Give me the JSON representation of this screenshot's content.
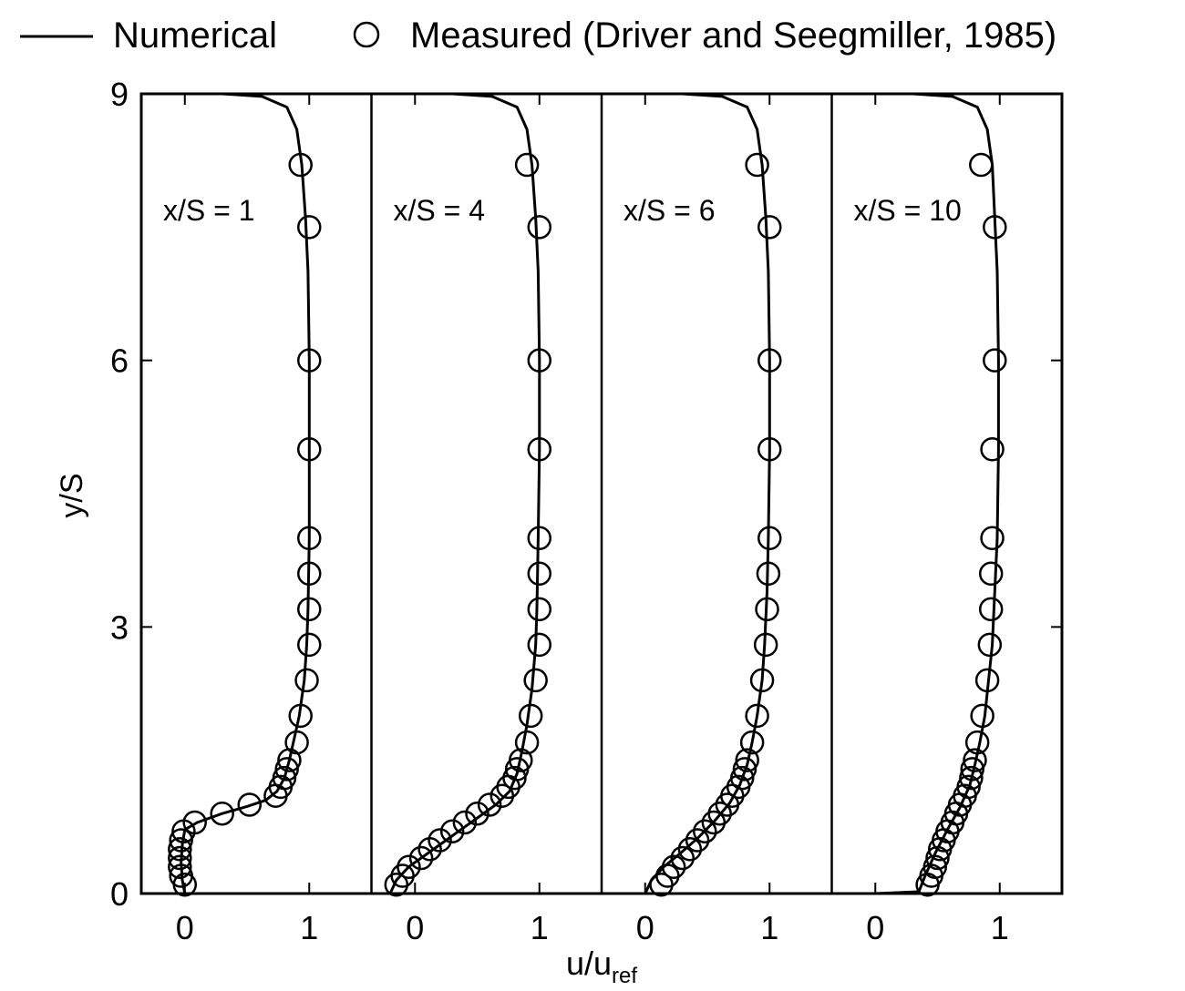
{
  "chart_data": {
    "type": "line",
    "legend": {
      "placement": "top",
      "entries": [
        {
          "label": "Numerical",
          "marker": "line"
        },
        {
          "label": "Measured (Driver and Seegmiller, 1985)",
          "marker": "open-circle"
        }
      ]
    },
    "ylabel": "y/S",
    "xlabel_main": "u/u",
    "xlabel_sub": "ref",
    "ylim": [
      0,
      9
    ],
    "yticks": [
      0,
      3,
      6,
      9
    ],
    "xlim": [
      -0.35,
      1.5
    ],
    "xticks": [
      0,
      1
    ],
    "grid": false,
    "panels": [
      {
        "label": "x/S = 1",
        "numerical": [
          [
            0.0,
            0.0
          ],
          [
            -0.02,
            0.15
          ],
          [
            -0.03,
            0.35
          ],
          [
            -0.02,
            0.55
          ],
          [
            0.0,
            0.72
          ],
          [
            0.1,
            0.8
          ],
          [
            0.3,
            0.9
          ],
          [
            0.5,
            0.98
          ],
          [
            0.65,
            1.05
          ],
          [
            0.74,
            1.15
          ],
          [
            0.8,
            1.3
          ],
          [
            0.84,
            1.5
          ],
          [
            0.88,
            1.75
          ],
          [
            0.92,
            2.0
          ],
          [
            0.96,
            2.4
          ],
          [
            0.98,
            2.8
          ],
          [
            0.99,
            3.2
          ],
          [
            1.0,
            4.0
          ],
          [
            1.0,
            5.0
          ],
          [
            1.0,
            6.0
          ],
          [
            0.99,
            7.0
          ],
          [
            0.97,
            7.6
          ],
          [
            0.94,
            8.2
          ],
          [
            0.9,
            8.6
          ],
          [
            0.82,
            8.85
          ],
          [
            0.62,
            8.97
          ],
          [
            0.3,
            9.0
          ],
          [
            -0.35,
            9.0
          ]
        ],
        "measured": [
          [
            0.0,
            0.1
          ],
          [
            -0.03,
            0.2
          ],
          [
            -0.04,
            0.3
          ],
          [
            -0.04,
            0.4
          ],
          [
            -0.04,
            0.5
          ],
          [
            -0.03,
            0.6
          ],
          [
            -0.01,
            0.7
          ],
          [
            0.08,
            0.8
          ],
          [
            0.3,
            0.9
          ],
          [
            0.52,
            1.0
          ],
          [
            0.73,
            1.1
          ],
          [
            0.77,
            1.2
          ],
          [
            0.8,
            1.3
          ],
          [
            0.82,
            1.4
          ],
          [
            0.84,
            1.5
          ],
          [
            0.9,
            1.7
          ],
          [
            0.93,
            2.0
          ],
          [
            0.98,
            2.4
          ],
          [
            1.0,
            2.8
          ],
          [
            1.0,
            3.2
          ],
          [
            1.0,
            3.6
          ],
          [
            1.0,
            4.0
          ],
          [
            1.0,
            5.0
          ],
          [
            1.0,
            6.0
          ],
          [
            1.0,
            7.5
          ],
          [
            0.93,
            8.2
          ]
        ]
      },
      {
        "label": "x/S = 4",
        "numerical": [
          [
            -0.2,
            0.0
          ],
          [
            -0.15,
            0.15
          ],
          [
            -0.05,
            0.3
          ],
          [
            0.1,
            0.45
          ],
          [
            0.3,
            0.65
          ],
          [
            0.5,
            0.85
          ],
          [
            0.65,
            1.0
          ],
          [
            0.76,
            1.15
          ],
          [
            0.82,
            1.35
          ],
          [
            0.86,
            1.6
          ],
          [
            0.9,
            1.9
          ],
          [
            0.94,
            2.3
          ],
          [
            0.97,
            2.8
          ],
          [
            0.98,
            3.2
          ],
          [
            0.99,
            4.0
          ],
          [
            1.0,
            5.0
          ],
          [
            1.0,
            6.0
          ],
          [
            0.99,
            7.0
          ],
          [
            0.97,
            7.6
          ],
          [
            0.94,
            8.2
          ],
          [
            0.9,
            8.6
          ],
          [
            0.82,
            8.85
          ],
          [
            0.62,
            8.97
          ],
          [
            0.3,
            9.0
          ],
          [
            -0.35,
            9.0
          ]
        ],
        "measured": [
          [
            -0.15,
            0.1
          ],
          [
            -0.1,
            0.2
          ],
          [
            -0.05,
            0.3
          ],
          [
            0.05,
            0.4
          ],
          [
            0.12,
            0.5
          ],
          [
            0.2,
            0.6
          ],
          [
            0.3,
            0.7
          ],
          [
            0.4,
            0.8
          ],
          [
            0.5,
            0.9
          ],
          [
            0.6,
            1.0
          ],
          [
            0.7,
            1.1
          ],
          [
            0.75,
            1.2
          ],
          [
            0.8,
            1.3
          ],
          [
            0.82,
            1.4
          ],
          [
            0.85,
            1.5
          ],
          [
            0.9,
            1.7
          ],
          [
            0.93,
            2.0
          ],
          [
            0.97,
            2.4
          ],
          [
            1.0,
            2.8
          ],
          [
            1.0,
            3.2
          ],
          [
            1.0,
            3.6
          ],
          [
            1.0,
            4.0
          ],
          [
            1.0,
            5.0
          ],
          [
            1.0,
            6.0
          ],
          [
            1.0,
            7.5
          ],
          [
            0.9,
            8.2
          ]
        ]
      },
      {
        "label": "x/S = 6",
        "numerical": [
          [
            0.0,
            0.0
          ],
          [
            0.05,
            0.15
          ],
          [
            0.15,
            0.3
          ],
          [
            0.28,
            0.45
          ],
          [
            0.42,
            0.62
          ],
          [
            0.56,
            0.82
          ],
          [
            0.68,
            1.02
          ],
          [
            0.76,
            1.22
          ],
          [
            0.82,
            1.45
          ],
          [
            0.86,
            1.7
          ],
          [
            0.9,
            2.0
          ],
          [
            0.94,
            2.4
          ],
          [
            0.96,
            2.8
          ],
          [
            0.98,
            3.4
          ],
          [
            0.99,
            4.0
          ],
          [
            1.0,
            5.0
          ],
          [
            1.0,
            6.0
          ],
          [
            0.99,
            7.0
          ],
          [
            0.97,
            7.6
          ],
          [
            0.94,
            8.2
          ],
          [
            0.9,
            8.6
          ],
          [
            0.82,
            8.85
          ],
          [
            0.62,
            8.97
          ],
          [
            0.3,
            9.0
          ],
          [
            -0.35,
            9.0
          ]
        ],
        "measured": [
          [
            0.13,
            0.1
          ],
          [
            0.18,
            0.2
          ],
          [
            0.23,
            0.3
          ],
          [
            0.3,
            0.4
          ],
          [
            0.36,
            0.5
          ],
          [
            0.42,
            0.6
          ],
          [
            0.48,
            0.7
          ],
          [
            0.55,
            0.8
          ],
          [
            0.6,
            0.9
          ],
          [
            0.66,
            1.0
          ],
          [
            0.7,
            1.1
          ],
          [
            0.75,
            1.2
          ],
          [
            0.78,
            1.3
          ],
          [
            0.8,
            1.4
          ],
          [
            0.82,
            1.5
          ],
          [
            0.86,
            1.7
          ],
          [
            0.9,
            2.0
          ],
          [
            0.94,
            2.4
          ],
          [
            0.97,
            2.8
          ],
          [
            0.98,
            3.2
          ],
          [
            0.99,
            3.6
          ],
          [
            1.0,
            4.0
          ],
          [
            1.0,
            5.0
          ],
          [
            1.0,
            6.0
          ],
          [
            1.0,
            7.5
          ],
          [
            0.9,
            8.2
          ]
        ]
      },
      {
        "label": "x/S = 10",
        "numerical": [
          [
            0.0,
            0.0
          ],
          [
            0.35,
            0.02
          ],
          [
            0.4,
            0.2
          ],
          [
            0.48,
            0.45
          ],
          [
            0.58,
            0.72
          ],
          [
            0.68,
            0.97
          ],
          [
            0.76,
            1.22
          ],
          [
            0.8,
            1.45
          ],
          [
            0.84,
            1.7
          ],
          [
            0.88,
            2.0
          ],
          [
            0.91,
            2.4
          ],
          [
            0.94,
            2.8
          ],
          [
            0.96,
            3.4
          ],
          [
            0.98,
            4.0
          ],
          [
            0.99,
            5.0
          ],
          [
            0.99,
            6.0
          ],
          [
            0.98,
            7.0
          ],
          [
            0.96,
            7.6
          ],
          [
            0.94,
            8.2
          ],
          [
            0.9,
            8.6
          ],
          [
            0.82,
            8.85
          ],
          [
            0.62,
            8.97
          ],
          [
            0.3,
            9.0
          ],
          [
            -0.35,
            9.0
          ]
        ],
        "measured": [
          [
            0.42,
            0.1
          ],
          [
            0.45,
            0.2
          ],
          [
            0.48,
            0.3
          ],
          [
            0.5,
            0.4
          ],
          [
            0.52,
            0.5
          ],
          [
            0.55,
            0.6
          ],
          [
            0.58,
            0.7
          ],
          [
            0.62,
            0.8
          ],
          [
            0.65,
            0.9
          ],
          [
            0.68,
            1.0
          ],
          [
            0.72,
            1.1
          ],
          [
            0.75,
            1.2
          ],
          [
            0.77,
            1.3
          ],
          [
            0.78,
            1.4
          ],
          [
            0.8,
            1.5
          ],
          [
            0.82,
            1.7
          ],
          [
            0.86,
            2.0
          ],
          [
            0.9,
            2.4
          ],
          [
            0.92,
            2.8
          ],
          [
            0.93,
            3.2
          ],
          [
            0.93,
            3.6
          ],
          [
            0.94,
            4.0
          ],
          [
            0.94,
            5.0
          ],
          [
            0.96,
            6.0
          ],
          [
            0.96,
            7.5
          ],
          [
            0.85,
            8.2
          ]
        ]
      }
    ]
  }
}
